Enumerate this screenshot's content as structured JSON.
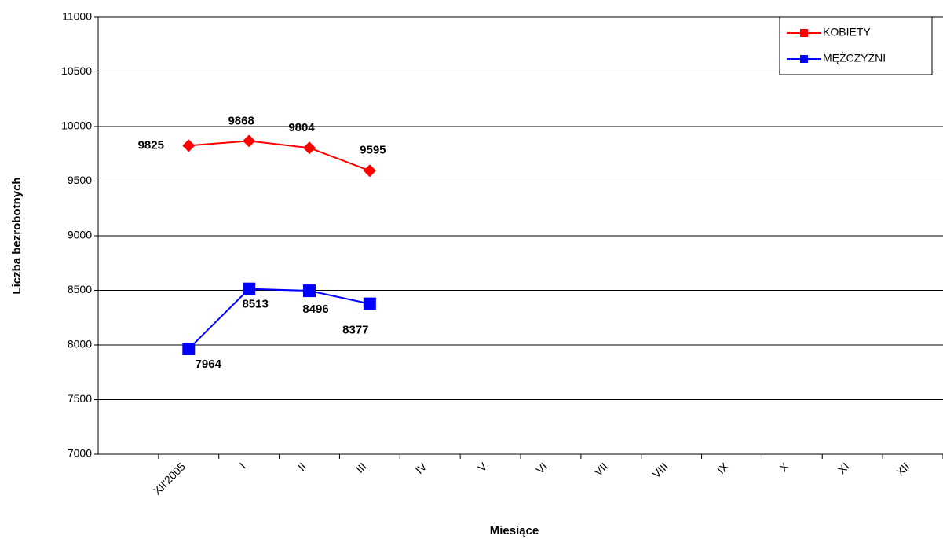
{
  "chart_data": {
    "type": "line",
    "x_label": "Miesiące",
    "y_label": "Liczba bezrobotnych",
    "categories": [
      null,
      "XII'2005",
      "I",
      "II",
      "III",
      "IV",
      "V",
      "VI",
      "VII",
      "VIII",
      "IX",
      "X",
      "XI",
      "XII"
    ],
    "series": [
      {
        "name": "KOBIETY",
        "color": "#ff0000",
        "marker": "diamond",
        "values": [
          null,
          9825,
          9868,
          9804,
          9595,
          null,
          null,
          null,
          null,
          null,
          null,
          null,
          null,
          null
        ]
      },
      {
        "name": "MĘŻCZYŹNI",
        "color": "#0000ff",
        "marker": "square",
        "values": [
          null,
          7964,
          8513,
          8496,
          8377,
          null,
          null,
          null,
          null,
          null,
          null,
          null,
          null,
          null
        ]
      }
    ],
    "ylim": [
      7000,
      11000
    ],
    "yticks": [
      7000,
      7500,
      8000,
      8500,
      9000,
      9500,
      10000,
      10500,
      11000
    ],
    "grid": true,
    "legend": "top-right"
  }
}
